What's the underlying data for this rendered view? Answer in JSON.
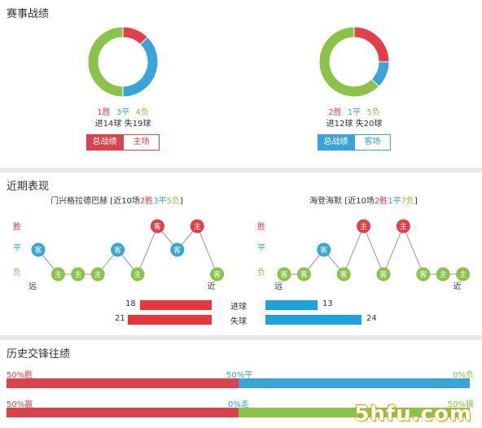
{
  "record": {
    "title": "赛事战绩",
    "home": {
      "chart_data": {
        "type": "pie",
        "categories": [
          "胜",
          "平",
          "负"
        ],
        "values": [
          1,
          3,
          4
        ]
      },
      "wins": "1胜",
      "draws": "3平",
      "losses": "4负",
      "goals_for": "进14球",
      "goals_against": "失19球",
      "btn_all": "总战绩",
      "btn_venue": "主场"
    },
    "away": {
      "chart_data": {
        "type": "pie",
        "categories": [
          "胜",
          "平",
          "负"
        ],
        "values": [
          2,
          1,
          5
        ]
      },
      "wins": "2胜",
      "draws": "1平",
      "losses": "5负",
      "goals_for": "进12球",
      "goals_against": "失20球",
      "btn_all": "总战绩",
      "btn_venue": "客场"
    },
    "colors": {
      "win": "#e0404a",
      "draw": "#3aa4d8",
      "loss": "#8bc34a"
    }
  },
  "recent": {
    "title": "近期表现",
    "axis": {
      "win": "胜",
      "draw": "平",
      "loss": "负",
      "far": "远",
      "near": "近"
    },
    "home": {
      "name": "门兴格拉德巴赫",
      "summary_prefix": "[近10场",
      "wins": "2胜",
      "draws": "3平",
      "losses": "5负",
      "summary_suffix": "]",
      "results": [
        "D",
        "L",
        "L",
        "L",
        "D",
        "L",
        "W",
        "D",
        "W",
        "L"
      ],
      "venues": [
        "客",
        "主",
        "主",
        "主",
        "客",
        "主",
        "客",
        "客",
        "主",
        "客"
      ]
    },
    "away": {
      "name": "海登海默",
      "summary_prefix": "[近10场",
      "wins": "2胜",
      "draws": "1平",
      "losses": "7负",
      "summary_suffix": "]",
      "results": [
        "L",
        "L",
        "D",
        "L",
        "W",
        "L",
        "W",
        "L",
        "L",
        "L"
      ],
      "venues": [
        "客",
        "客",
        "客",
        "客",
        "主",
        "客",
        "主",
        "客",
        "主",
        "主"
      ]
    },
    "goals": {
      "scored_label": "进球",
      "conceded_label": "失球",
      "home_scored": 18,
      "home_conceded": 21,
      "away_scored": 13,
      "away_conceded": 24
    }
  },
  "h2h": {
    "title": "历史交锋往绩",
    "row1": {
      "left": "50%胜",
      "mid": "50%平",
      "right": "0%负",
      "values": [
        50,
        50,
        0
      ]
    },
    "row2": {
      "left": "50%赢",
      "mid": "0%走",
      "right": "50%输",
      "values": [
        50,
        0,
        50
      ]
    }
  },
  "watermark": "5hfu.com"
}
